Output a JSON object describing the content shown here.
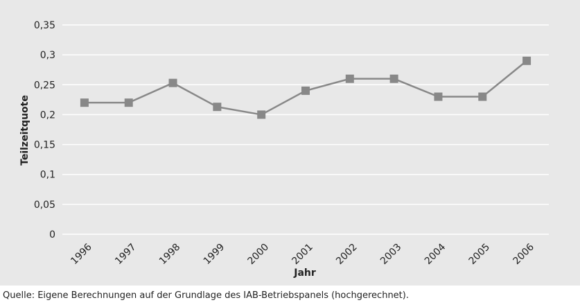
{
  "chart_data": {
    "type": "line",
    "x_label": "Jahr",
    "y_label": "Teilzeitquote",
    "source": "Quelle: Eigene Berechnungen auf der Grundlage des IAB-Betriebspanels (hochgerechnet).",
    "categories": [
      "1996",
      "1997",
      "1998",
      "1999",
      "2000",
      "2001",
      "2002",
      "2003",
      "2004",
      "2005",
      "2006"
    ],
    "series": [
      {
        "name": "Teilzeitquote",
        "color": "#888888",
        "values": [
          0.22,
          0.22,
          0.253,
          0.213,
          0.2,
          0.24,
          0.26,
          0.26,
          0.23,
          0.23,
          0.29
        ]
      }
    ],
    "ylim": [
      0,
      0.35
    ],
    "yticks": [
      0,
      {
        "value": 0.05,
        "label": "0,05"
      },
      {
        "value": 0.1,
        "label": "0,1"
      },
      {
        "value": 0.15,
        "label": "0,15"
      },
      {
        "value": 0.2,
        "label": "0,2"
      },
      {
        "value": 0.25,
        "label": "0,25"
      },
      {
        "value": 0.3,
        "label": "0,3"
      },
      {
        "value": 0.35,
        "label": "0,35"
      }
    ],
    "grid": true
  }
}
